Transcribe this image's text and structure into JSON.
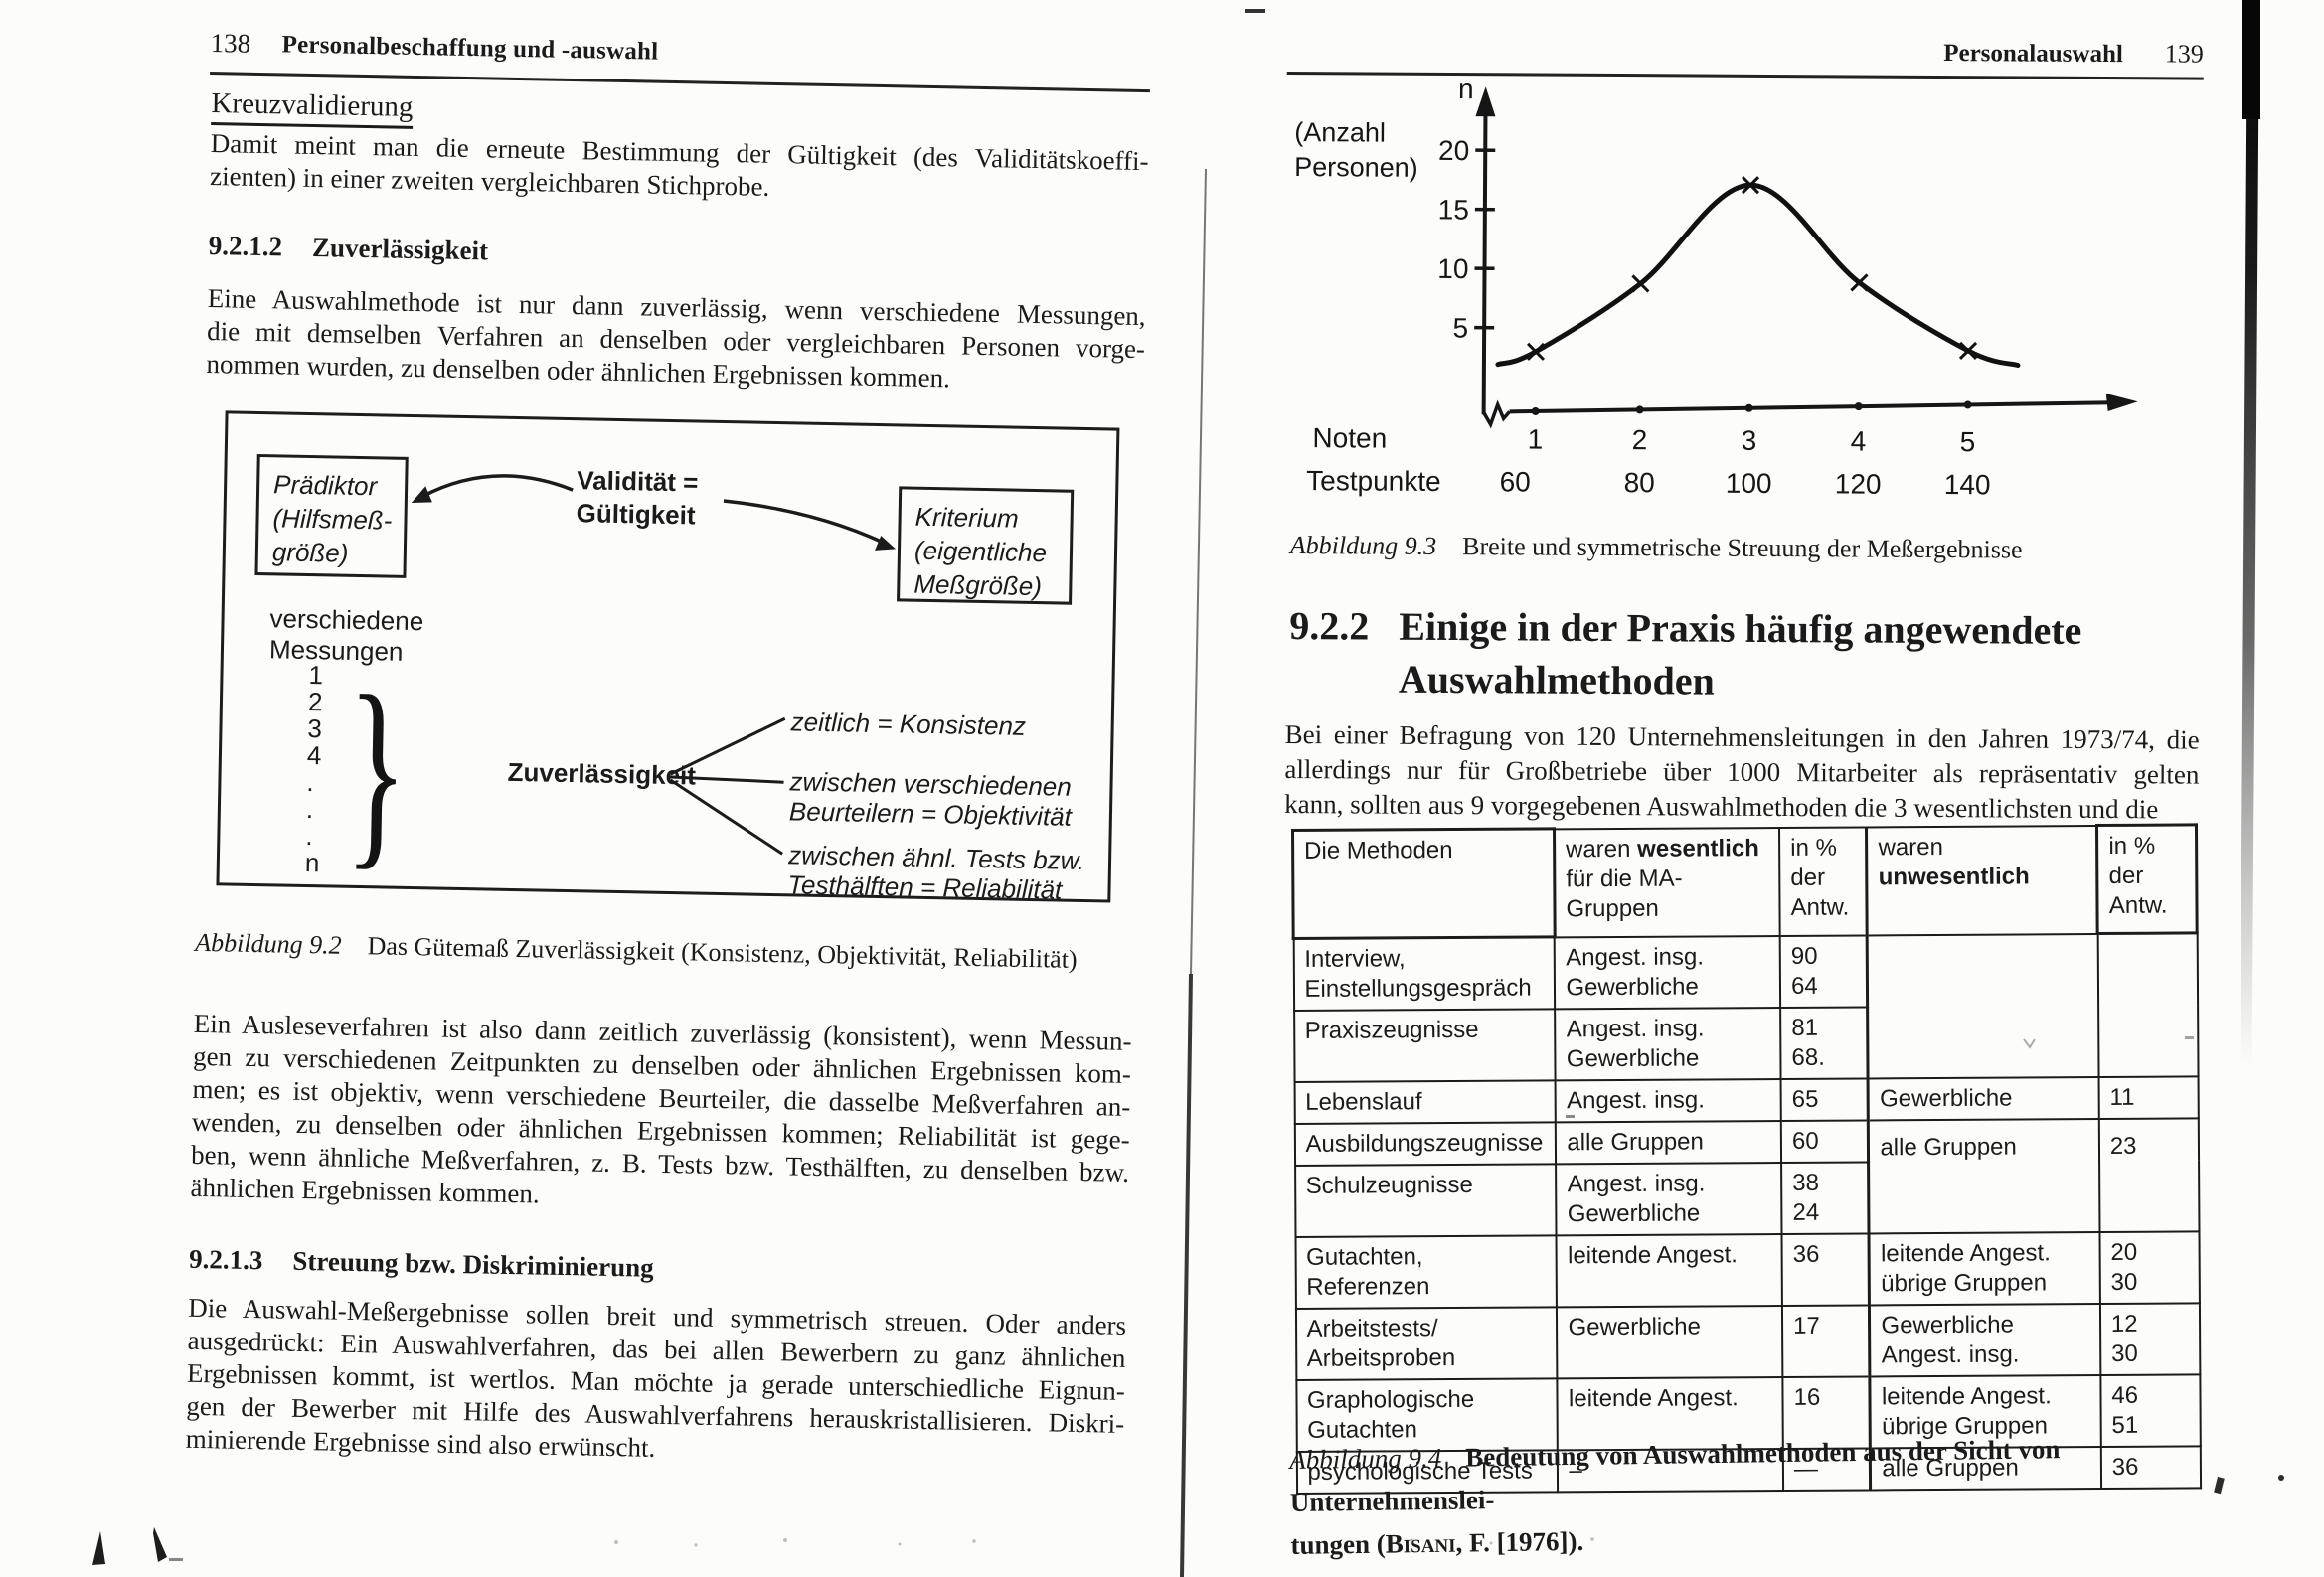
{
  "colors": {
    "ink": "#1b1b1b",
    "paper": "#fcfcfb"
  },
  "left_page": {
    "page_number": "138",
    "running_head": "Personalbeschaffung und -auswahl",
    "kreuz_heading": "Kreuzvalidierung",
    "para_kreuz": [
      "Damit meint man die erneute Bestimmung der Gültigkeit (des Validitätskoeffi-",
      "zienten) in einer zweiten vergleichbaren Stichprobe."
    ],
    "sec_9212": {
      "num": "9.2.1.2",
      "title": "Zuverlässigkeit"
    },
    "para_9212": [
      "Eine Auswahlmethode ist nur dann zuverlässig, wenn verschiedene Messungen,",
      "die mit demselben Verfahren an denselben oder vergleichbaren Personen vorge-",
      "nommen wurden, zu denselben oder ähnlichen Ergebnissen kommen."
    ],
    "figure_9_2": {
      "predictor_box": "Prädiktor\n(Hilfsmeß-\ngröße)",
      "validity_label": "Validität =\nGültigkeit",
      "criterion_box": "Kriterium\n(eigentliche\nMeßgröße)",
      "measurements_label": "verschiedene\nMessungen",
      "measurement_list": [
        "1",
        "2",
        "3",
        "4",
        ".",
        ".",
        ".",
        "n"
      ],
      "brace_glyph": "}",
      "reliability_label": "Zuverlässigkeit",
      "branch_1": "zeitlich = Konsistenz",
      "branch_2": "zwischen verschiedenen\nBeurteilern = Objektivität",
      "branch_3": "zwischen ähnl. Tests bzw.\nTesthälften = Reliabilität",
      "caption_label": "Abbildung 9.2",
      "caption_text": "Das Gütemaß Zuverlässigkeit (Konsistenz, Objektivität, Reliabilität)"
    },
    "para_auslese": [
      "Ein Ausleseverfahren ist also dann zeitlich zuverlässig (konsistent), wenn Messun-",
      "gen zu verschiedenen Zeitpunkten zu denselben oder ähnlichen Ergebnissen kom-",
      "men; es ist objektiv, wenn verschiedene Beurteiler, die dasselbe Meßverfahren an-",
      "wenden, zu denselben oder ähnlichen Ergebnissen kommen; Reliabilität ist gege-",
      "ben, wenn ähnliche Meßverfahren, z. B. Tests bzw. Testhälften, zu denselben bzw.",
      "ähnlichen Ergebnissen kommen."
    ],
    "sec_9213": {
      "num": "9.2.1.3",
      "title": "Streuung bzw. Diskriminierung"
    },
    "para_streuung": [
      "Die Auswahl-Meßergebnisse sollen breit und symmetrisch streuen. Oder anders",
      "ausgedrückt: Ein Auswahlverfahren, das bei allen Bewerbern zu ganz ähnlichen",
      "Ergebnissen kommt, ist wertlos. Man möchte ja gerade unterschiedliche Eignun-",
      "gen der Bewerber mit Hilfe des Auswahlverfahrens herauskristallisieren. Diskri-",
      "minierende Ergebnisse sind also erwünscht."
    ]
  },
  "right_page": {
    "running_head": "Personalauswahl",
    "page_number": "139",
    "figure_9_3": {
      "caption_label": "Abbildung 9.3",
      "caption_text": "Breite und symmetrische Streuung der Meßergebnisse"
    },
    "sec_922": {
      "num": "9.2.2",
      "title_line1": "Einige in der Praxis häufig angewendete",
      "title_line2": "Auswahlmethoden"
    },
    "para_befragung": [
      "Bei einer Befragung von 120 Unternehmensleitungen in den Jahren 1973/74, die",
      "allerdings nur für Großbetriebe über 1000 Mitarbeiter als repräsentativ gelten",
      "kann, sollten aus 9 vorgegebenen Auswahlmethoden die 3 wesentlichsten und die"
    ],
    "table": {
      "headers": {
        "col1": "Die Methoden",
        "col2_normal": "waren ",
        "col2_bold": "wesentlich",
        "col2_line2": "für die MA-Gruppen",
        "col3": "in %\nder\nAntw.",
        "col4_normal": "waren ",
        "col4_bold": "unwesentlich",
        "col5": "in %\nder\nAntw."
      },
      "rows": [
        {
          "method": "Interview,\nEinstellungsgespräch",
          "essential": "Angest. insg.\nGewerbliche",
          "essential_pct": "90\n64",
          "nonessential": "",
          "nonessential_pct": ""
        },
        {
          "method": "Praxiszeugnisse",
          "essential": "Angest. insg.\nGewerbliche",
          "essential_pct": "81\n68."
        },
        {
          "method": "Lebenslauf",
          "essential": "Angest. insg.",
          "essential_pct": "65",
          "nonessential": "Gewerbliche",
          "nonessential_pct": "11"
        },
        {
          "method": "Ausbildungszeugnisse",
          "essential": "alle Gruppen",
          "essential_pct": "60",
          "nonessential": "alle Gruppen",
          "nonessential_pct": "23"
        },
        {
          "method": "Schulzeugnisse",
          "essential": "Angest. insg.\nGewerbliche",
          "essential_pct": "38\n24"
        },
        {
          "method": "Gutachten, Referenzen",
          "essential": "leitende Angest.",
          "essential_pct": "36",
          "nonessential": "leitende Angest.\nübrige Gruppen",
          "nonessential_pct": "20\n30"
        },
        {
          "method": "Arbeitstests/\nArbeitsproben",
          "essential": "Gewerbliche",
          "essential_pct": "17",
          "nonessential": "Gewerbliche\nAngest. insg.",
          "nonessential_pct": "12\n30"
        },
        {
          "method": "Graphologische\nGutachten",
          "essential": "leitende Angest.",
          "essential_pct": "16",
          "nonessential": "leitende Angest.\nübrige Gruppen",
          "nonessential_pct": "46\n51"
        },
        {
          "method": "psychologische Tests",
          "essential": "–",
          "essential_pct": "—",
          "nonessential": "alle Gruppen",
          "nonessential_pct": "36"
        }
      ]
    },
    "figure_9_4": {
      "caption_label": "Abbildung 9.4",
      "caption_line1": "Bedeutung von Auswahlmethoden aus der Sicht von Unternehmenslei-",
      "caption_line2_pre": "tungen (",
      "caption_author": "Bisani",
      "caption_line2_post": ", F. [1976])."
    }
  },
  "chart_data": {
    "type": "line",
    "title": "Breite und symmetrische Streuung der Meßergebnisse",
    "y_axis_symbol": "n",
    "y_axis_label_lines": [
      "(Anzahl",
      "Personen)"
    ],
    "x_axis_row1_label": "Noten",
    "x_axis_row2_label": "Testpunkte",
    "noten": [
      "1",
      "2",
      "3",
      "4",
      "5"
    ],
    "testpunkte": [
      "60",
      "80",
      "100",
      "120",
      "140"
    ],
    "values": [
      3,
      8.8,
      17.2,
      9,
      3.3
    ],
    "yticks": [
      20,
      15,
      10,
      5
    ],
    "ylim": [
      0,
      22
    ],
    "grid": false,
    "marker": "x",
    "legend": "none"
  }
}
